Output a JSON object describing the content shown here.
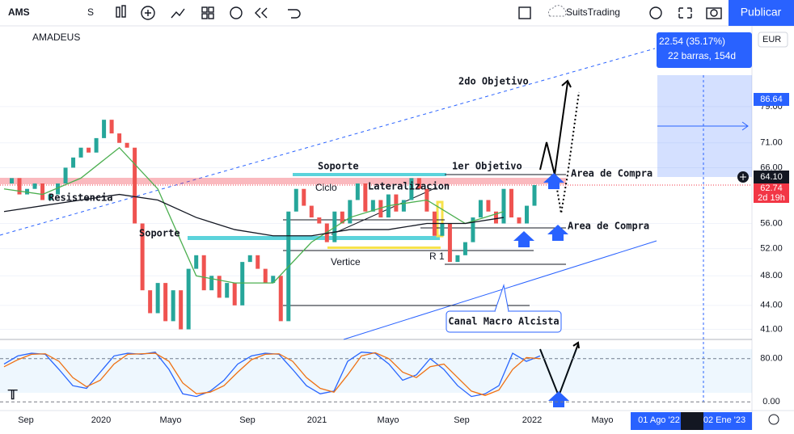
{
  "toolbar": {
    "symbol": "AMS",
    "interval": "S",
    "account": "SuitsTrading",
    "publish": "Publicar"
  },
  "legend": "AMADEUS",
  "currency": "EUR",
  "measure": {
    "change": "22.54 (35.17%)",
    "span": "22 barras, 154d"
  },
  "price_labels": {
    "target": "86.64",
    "last": "64.10",
    "current": "62.74",
    "countdown": "2d 19h"
  },
  "main": {
    "ylim": [
      39.8,
      100.2
    ],
    "log": true,
    "yticks": [
      {
        "value": 79,
        "label": "79.00"
      },
      {
        "value": 71,
        "label": "71.00"
      },
      {
        "value": 66,
        "label": "66.00"
      },
      {
        "value": 56,
        "label": "56.00"
      },
      {
        "value": 52,
        "label": "52.00"
      },
      {
        "value": 48,
        "label": "48.00"
      },
      {
        "value": 44,
        "label": "44.00"
      },
      {
        "value": 41,
        "label": "41.00"
      }
    ],
    "closes": [
      63,
      64,
      61,
      62,
      63,
      60,
      61,
      63,
      66,
      68,
      70,
      69,
      72,
      76,
      73,
      71,
      70,
      56,
      46,
      43,
      47,
      42,
      46,
      41,
      49,
      51,
      46,
      48,
      45,
      47,
      44,
      50,
      51,
      49,
      47,
      48,
      42,
      58,
      62,
      59,
      57,
      56,
      53,
      58,
      56,
      60,
      63,
      58,
      60,
      57,
      61,
      58,
      60,
      64,
      62,
      58,
      54,
      56,
      50,
      51,
      53,
      57,
      60,
      58,
      56,
      62,
      57,
      56,
      59,
      62.7
    ],
    "ma_green": [
      62,
      61,
      64,
      70,
      62,
      48,
      47,
      47,
      53,
      57,
      59,
      60,
      56,
      58
    ],
    "ma_dark": [
      58,
      59,
      60,
      61,
      60,
      57,
      55,
      54,
      54,
      55,
      55,
      56,
      56,
      57
    ]
  },
  "oscillator": {
    "ylim": [
      -16,
      114
    ],
    "yticks": [
      {
        "value": 80,
        "label": "80.00"
      },
      {
        "value": 0,
        "label": "0.00"
      }
    ],
    "k": [
      70,
      85,
      90,
      88,
      60,
      30,
      25,
      55,
      85,
      90,
      88,
      92,
      60,
      15,
      10,
      20,
      40,
      70,
      85,
      90,
      88,
      60,
      30,
      15,
      20,
      75,
      92,
      90,
      70,
      40,
      50,
      80,
      60,
      30,
      10,
      15,
      30,
      90,
      75,
      85
    ],
    "d": [
      65,
      78,
      88,
      89,
      75,
      45,
      28,
      40,
      70,
      88,
      89,
      90,
      75,
      35,
      15,
      18,
      30,
      55,
      78,
      88,
      89,
      75,
      45,
      25,
      18,
      50,
      85,
      91,
      80,
      55,
      45,
      65,
      70,
      45,
      20,
      12,
      22,
      60,
      82,
      80
    ]
  },
  "time_axis": [
    "Sep",
    "2020",
    "Mayo",
    "Sep",
    "2021",
    "Mayo",
    "Sep",
    "2022",
    "Mayo"
  ],
  "time_range": [
    "01 Ago '22",
    "02 Ene '23"
  ],
  "annotations": {
    "objective2": "2do Objetivo",
    "objective1": "1er Objetivo",
    "buy_zone_1": "Area de Compra",
    "buy_zone_2": "Area de Compra",
    "resistance": "Resistencia",
    "support_1": "Soporte",
    "support_2": "Soporte",
    "cycle": "Ciclo",
    "lateral": "Lateralizacion",
    "vertex": "Vertice",
    "r1": "R 1",
    "channel": "Canal Macro Alcista"
  }
}
